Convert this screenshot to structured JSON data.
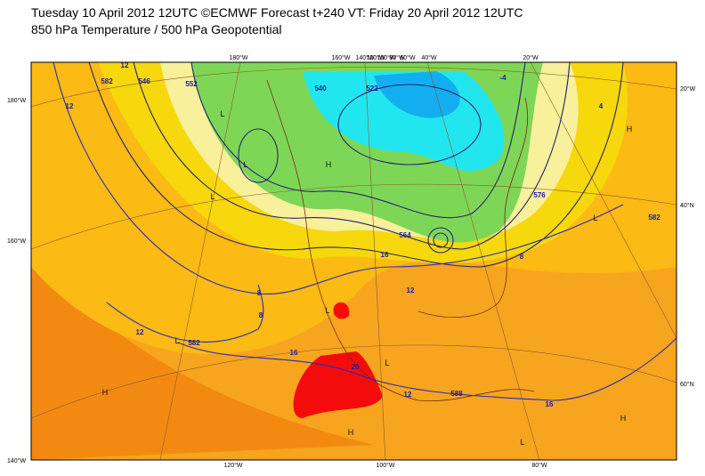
{
  "header": {
    "line1": "Tuesday 10 April 2012 12UTC ©ECMWF Forecast t+240 VT: Friday 20 April 2012 12UTC",
    "line2": "850 hPa Temperature / 500 hPa Geopotential"
  },
  "map": {
    "top_labels": [
      "180°W",
      "160°W",
      "140°W",
      "120°W",
      "100°W",
      "80°W",
      "60°W",
      "40°W",
      "20°W"
    ],
    "bottom_labels": [
      "120°W",
      "100°W",
      "80°W"
    ],
    "left_labels": [
      "180°W",
      "160°W",
      "140°W"
    ],
    "right_labels": [
      "20°W",
      "40°N",
      "60°N"
    ],
    "contour_labels": [
      "12",
      "12",
      "582",
      "546",
      "552",
      "8",
      "8",
      "12",
      "582",
      "16",
      "20",
      "12",
      "588",
      "16",
      "12",
      "8",
      "576",
      "582",
      "4",
      "-4",
      "564",
      "16",
      "522",
      "540"
    ],
    "centers": [
      "H",
      "L",
      "L",
      "L",
      "L",
      "H",
      "L",
      "H",
      "L",
      "H",
      "H",
      "L",
      "L"
    ]
  }
}
